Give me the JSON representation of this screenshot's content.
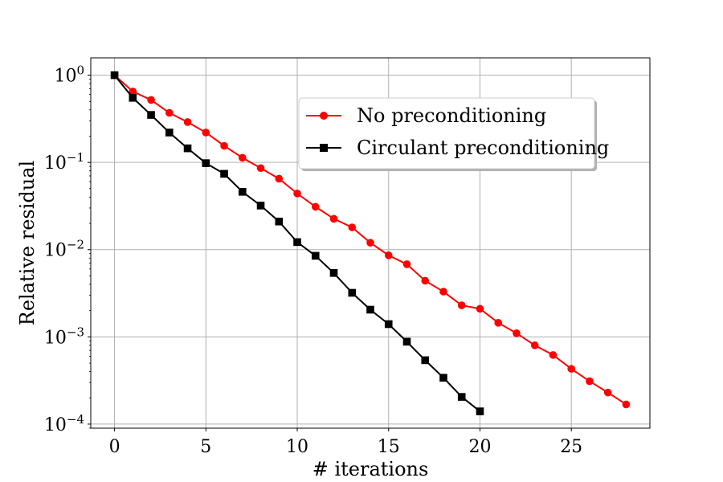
{
  "chart_data": {
    "type": "line",
    "xlabel": "# iterations",
    "ylabel": "Relative residual",
    "xlim": [
      -1.3,
      29.3
    ],
    "ylim": [
      8.98e-05,
      1.58
    ],
    "yscale": "log",
    "grid": true,
    "legend_placement": "upper-center",
    "x_ticks": [
      0,
      5,
      10,
      15,
      20,
      25
    ],
    "x_tick_labels": [
      "0",
      "5",
      "10",
      "15",
      "20",
      "25"
    ],
    "y_ticks": [
      1,
      0.1,
      0.01,
      0.001,
      0.0001
    ],
    "y_tick_labels": [
      {
        "base": "10",
        "exp": "0"
      },
      {
        "base": "10",
        "exp": "−1"
      },
      {
        "base": "10",
        "exp": "−2"
      },
      {
        "base": "10",
        "exp": "−3"
      },
      {
        "base": "10",
        "exp": "−4"
      }
    ],
    "series": [
      {
        "name": "No preconditioning",
        "color": "#ff0000",
        "marker": "circle",
        "x": [
          0,
          1,
          2,
          3,
          4,
          5,
          6,
          7,
          8,
          9,
          10,
          11,
          12,
          13,
          14,
          15,
          16,
          17,
          18,
          19,
          20,
          21,
          22,
          23,
          24,
          25,
          26,
          27,
          28
        ],
        "values": [
          1.0,
          0.65,
          0.52,
          0.37,
          0.29,
          0.22,
          0.155,
          0.113,
          0.086,
          0.065,
          0.044,
          0.031,
          0.0226,
          0.018,
          0.012,
          0.0086,
          0.0068,
          0.0044,
          0.0033,
          0.0023,
          0.0021,
          0.00145,
          0.0011,
          0.0008,
          0.00062,
          0.00043,
          0.00031,
          0.00023,
          0.000168
        ]
      },
      {
        "name": "Circulant preconditioning",
        "color": "#000000",
        "marker": "square",
        "x": [
          0,
          1,
          2,
          3,
          4,
          5,
          6,
          7,
          8,
          9,
          10,
          11,
          12,
          13,
          14,
          15,
          16,
          17,
          18,
          19,
          20
        ],
        "values": [
          1.0,
          0.55,
          0.35,
          0.22,
          0.145,
          0.098,
          0.074,
          0.046,
          0.032,
          0.021,
          0.0122,
          0.0085,
          0.0054,
          0.0032,
          0.00205,
          0.0014,
          0.00088,
          0.00054,
          0.00034,
          0.000205,
          0.00014
        ]
      }
    ]
  }
}
